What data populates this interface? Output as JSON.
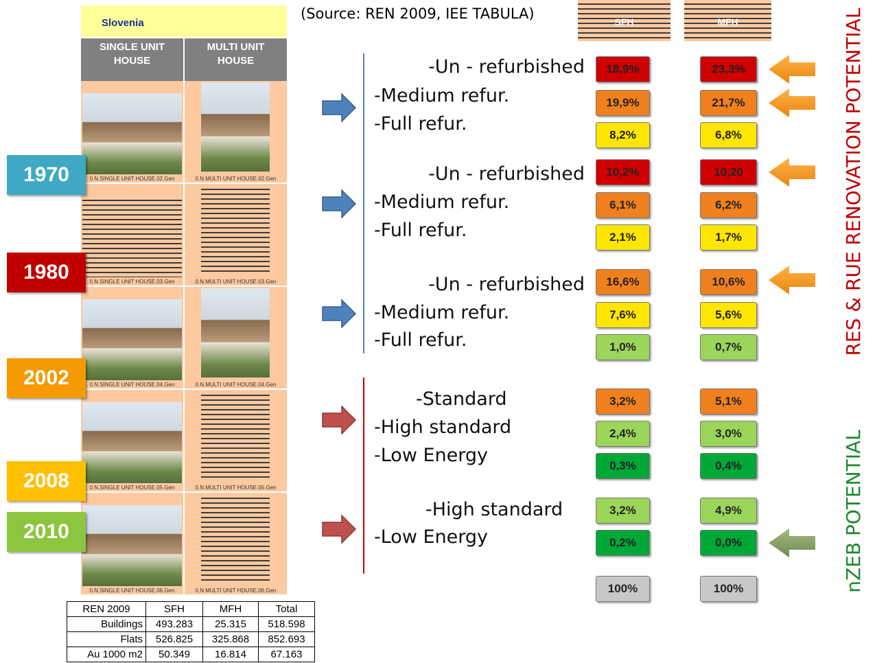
{
  "header": {
    "country": "Slovenia",
    "columns": [
      "SINGLE UNIT HOUSE",
      "MULTI UNIT HOUSE"
    ]
  },
  "photos": [
    [
      "0.N.SINGLE UNIT HOUSE.02.Gen",
      "0.N.MULTI UNIT HOUSE.02.Gen"
    ],
    [
      "0.N.SINGLE UNIT HOUSE.03.Gen",
      "0.N.MULTI UNIT HOUSE.03.Gen"
    ],
    [
      "0.N.SINGLE UNIT HOUSE.04.Gen",
      "0.N.MULTI UNIT HOUSE.04.Gen"
    ],
    [
      "0.N.SINGLE UNIT HOUSE.05.Gen",
      "0.N.MULTI UNIT HOUSE.05.Gen"
    ],
    [
      "0.N.SINGLE UNIT HOUSE.06.Gen",
      "0.N.MULTI UNIT HOUSE.06.Gen"
    ]
  ],
  "years": [
    {
      "text": "1970",
      "color": "#3fa9c5"
    },
    {
      "text": "1980",
      "color": "#c00000"
    },
    {
      "text": "2002",
      "color": "#f59a00"
    },
    {
      "text": "2008",
      "color": "#ffc000"
    },
    {
      "text": "2010",
      "color": "#8cc63f"
    }
  ],
  "source": "(Source: REN 2009, IEE TABULA)",
  "columns": [
    "SFH",
    "MFH"
  ],
  "groups": [
    {
      "rows": [
        {
          "label": "-Un - refurbished",
          "sfh": {
            "text": "18,9%",
            "color": "#d00000"
          },
          "mfh": {
            "text": "23,3%",
            "color": "#d00000"
          }
        },
        {
          "label": "-Medium refur.",
          "sfh": {
            "text": "19,9%",
            "color": "#f0801e"
          },
          "mfh": {
            "text": "21,7%",
            "color": "#f0801e"
          }
        },
        {
          "label": "-Full refur.",
          "sfh": {
            "text": "8,2%",
            "color": "#ffe600"
          },
          "mfh": {
            "text": "6,8%",
            "color": "#ffe600"
          }
        }
      ]
    },
    {
      "rows": [
        {
          "label": "-Un - refurbished",
          "sfh": {
            "text": "10,2%",
            "color": "#d00000"
          },
          "mfh": {
            "text": "10,20",
            "color": "#d00000"
          }
        },
        {
          "label": "-Medium refur.",
          "sfh": {
            "text": "6,1%",
            "color": "#f0801e"
          },
          "mfh": {
            "text": "6,2%",
            "color": "#f0801e"
          }
        },
        {
          "label": "-Full refur.",
          "sfh": {
            "text": "2,1%",
            "color": "#ffe600"
          },
          "mfh": {
            "text": "1,7%",
            "color": "#ffe600"
          }
        }
      ]
    },
    {
      "rows": [
        {
          "label": "-Un - refurbished",
          "sfh": {
            "text": "16,6%",
            "color": "#f0801e"
          },
          "mfh": {
            "text": "10,6%",
            "color": "#f0801e"
          }
        },
        {
          "label": "-Medium refur.",
          "sfh": {
            "text": "7,6%",
            "color": "#ffe600"
          },
          "mfh": {
            "text": "5,6%",
            "color": "#ffe600"
          }
        },
        {
          "label": "-Full refur.",
          "sfh": {
            "text": "1,0%",
            "color": "#9bd55a"
          },
          "mfh": {
            "text": "0,7%",
            "color": "#9bd55a"
          }
        }
      ]
    },
    {
      "rows": [
        {
          "label": "-Standard",
          "sfh": {
            "text": "3,2%",
            "color": "#f0801e"
          },
          "mfh": {
            "text": "5,1%",
            "color": "#f0801e"
          }
        },
        {
          "label": "-High standard",
          "sfh": {
            "text": "2,4%",
            "color": "#9bd55a"
          },
          "mfh": {
            "text": "3,0%",
            "color": "#9bd55a"
          }
        },
        {
          "label": "-Low Energy",
          "sfh": {
            "text": "0,3%",
            "color": "#00a838"
          },
          "mfh": {
            "text": "0,4%",
            "color": "#00a838"
          }
        }
      ]
    },
    {
      "rows": [
        {
          "label": "-High standard",
          "sfh": {
            "text": "3,2%",
            "color": "#9bd55a"
          },
          "mfh": {
            "text": "4,9%",
            "color": "#9bd55a"
          }
        },
        {
          "label": "-Low Energy",
          "sfh": {
            "text": "0,2%",
            "color": "#00a838"
          },
          "mfh": {
            "text": "0,0%",
            "color": "#00a838"
          }
        }
      ]
    }
  ],
  "total": {
    "sfh": {
      "text": "100%",
      "color": "#c8c8c8"
    },
    "mfh": {
      "text": "100%",
      "color": "#c8c8c8"
    }
  },
  "side_labels": [
    {
      "text": "RES & RUE RENOVATION POTENTIAL",
      "color": "#c00000"
    },
    {
      "text": "nZEB POTENTIAL",
      "color": "#1a8a2a"
    }
  ],
  "table": {
    "header": [
      "REN 2009",
      "SFH",
      "MFH",
      "Total"
    ],
    "rows": [
      [
        "Buildings",
        "493.283",
        "25.315",
        "518.598"
      ],
      [
        "Flats",
        "526.825",
        "325.868",
        "852.693"
      ],
      [
        "Au 1000 m2",
        "50.349",
        "16.814",
        "67.163"
      ]
    ]
  }
}
